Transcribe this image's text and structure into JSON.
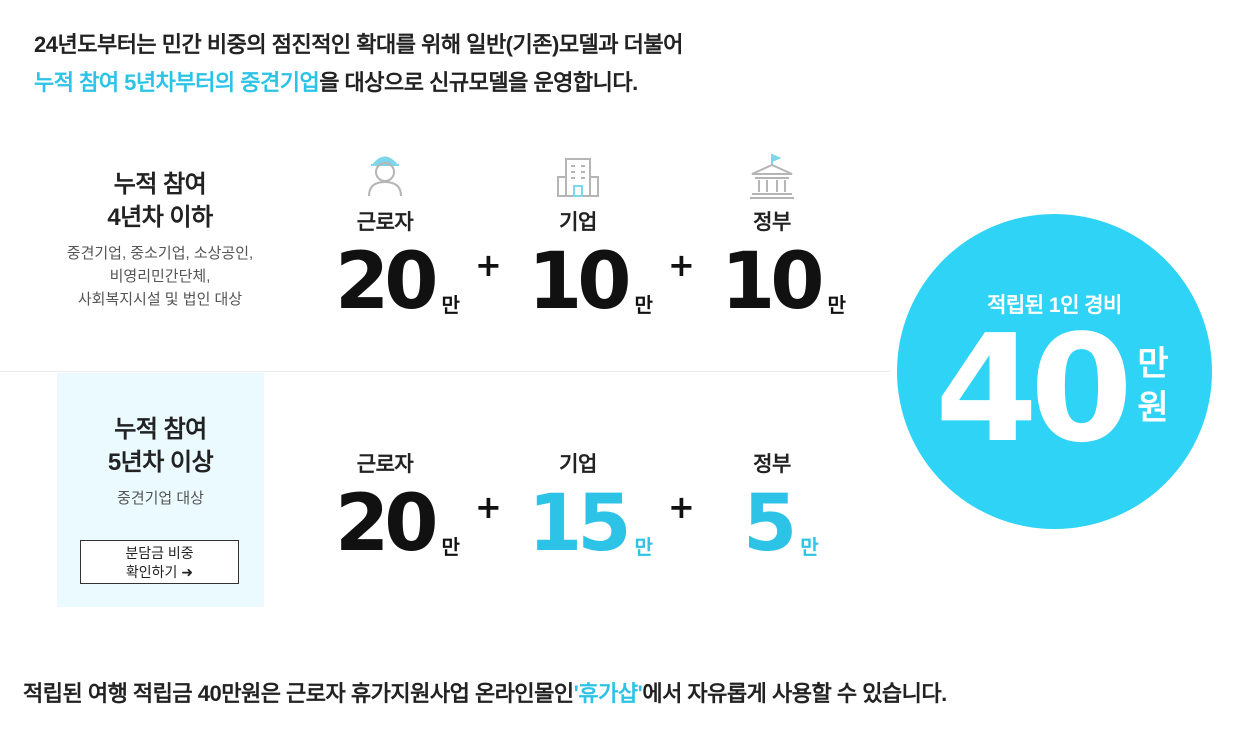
{
  "intro": {
    "line1": "24년도부터는 민간 비중의 점진적인 확대를 위해 일반(기존)모델과 더불어",
    "line2_highlight": "누적 참여 5년차부터의 중견기업",
    "line2_rest": "을 대상으로 신규모델을 운영합니다."
  },
  "tiers": [
    {
      "title_line1": "누적 참여",
      "title_line2": "4년차 이하",
      "sub_line1": "중견기업, 중소기업, 소상공인,",
      "sub_line2": "비영리민간단체,",
      "sub_line3": "사회복지시설 및 법인 대상",
      "worker": {
        "value": "20",
        "unit": "만"
      },
      "company": {
        "value": "10",
        "unit": "만"
      },
      "government": {
        "value": "10",
        "unit": "만"
      }
    },
    {
      "title_line1": "누적 참여",
      "title_line2": "5년차 이상",
      "sub_line1": "중견기업 대상",
      "button_line1": "분담금 비중",
      "button_line2": "확인하기 ➜",
      "worker": {
        "value": "20",
        "unit": "만"
      },
      "company": {
        "value": "15",
        "unit": "만"
      },
      "government": {
        "value": "5",
        "unit": "만"
      }
    }
  ],
  "columns": {
    "worker": "근로자",
    "company": "기업",
    "government": "정부",
    "plus": "+"
  },
  "icons": {
    "worker": "worker-person-icon",
    "company": "building-icon",
    "government": "government-building-flag-icon"
  },
  "total": {
    "label": "적립된 1인 경비",
    "value": "40",
    "unit_line1": "만",
    "unit_line2": "원"
  },
  "footer": {
    "before": "적립된 여행 적립금 40만원은 근로자 휴가지원사업 온라인몰인",
    "highlight": "'휴가샵'",
    "after": "에서 자유롭게 사용할 수 있습니다."
  },
  "colors": {
    "accent": "#2cc3e6",
    "circle": "#2ed3f5",
    "tier2_bg": "#eafaff",
    "icon_accent": "#7dd6ea"
  }
}
